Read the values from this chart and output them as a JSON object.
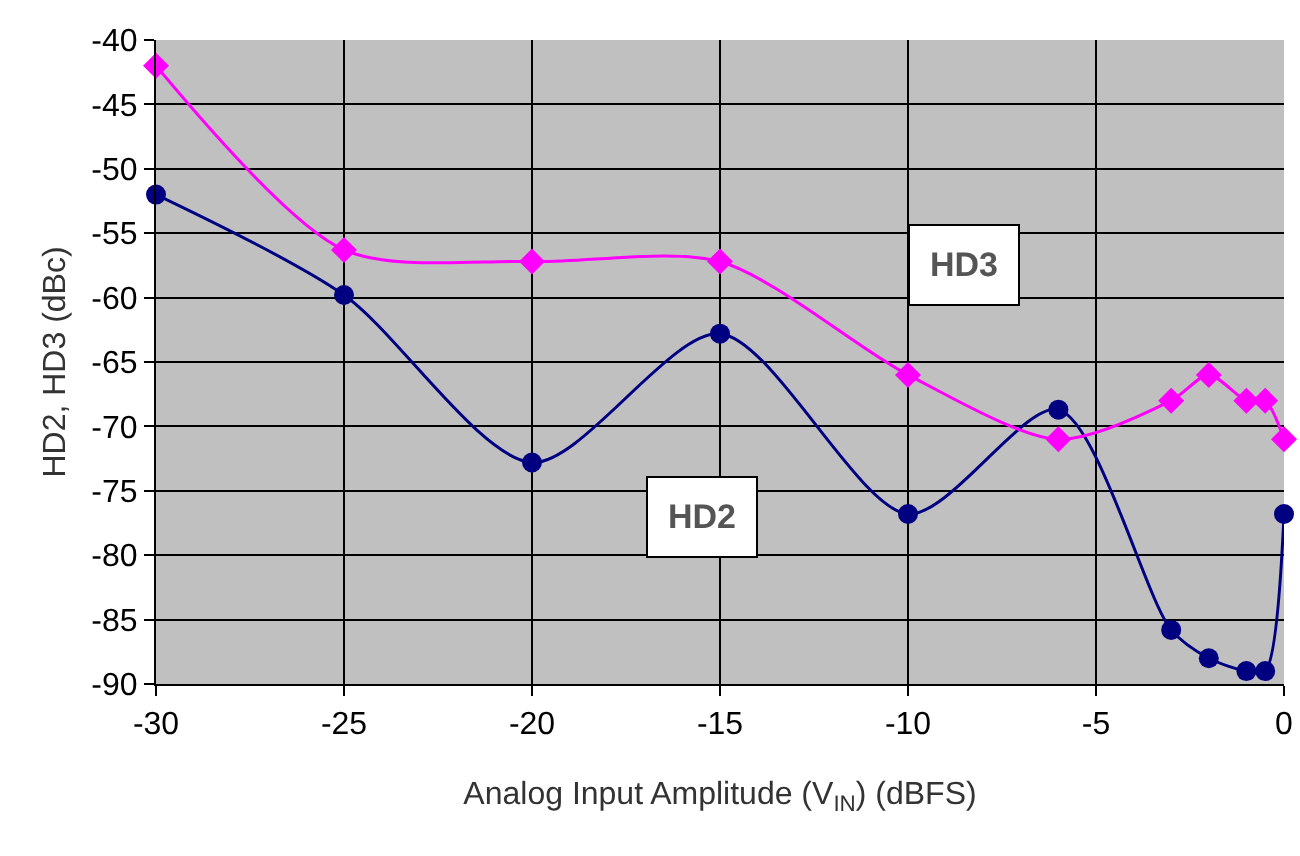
{
  "chart_data": {
    "type": "line",
    "xlabel": "Analog Input Amplitude (V$_{IN}$) (dBFS)",
    "ylabel": "HD2, HD3 (dBc)",
    "x": [
      -30,
      -25,
      -20,
      -15,
      -10,
      -6,
      -3,
      -2,
      -1,
      -0.5,
      0
    ],
    "series": [
      {
        "name": "HD2",
        "color": "#000080",
        "marker": "circle",
        "values": [
          -52,
          -59.8,
          -72.8,
          -62.8,
          -76.8,
          -68.7,
          -85.8,
          -88,
          -89,
          -89,
          -76.8
        ]
      },
      {
        "name": "HD3",
        "color": "#ff00ff",
        "marker": "diamond",
        "values": [
          -42,
          -56.3,
          -57.2,
          -57.2,
          -66,
          -71,
          -68,
          -66,
          -68,
          -68,
          -71
        ]
      }
    ],
    "xlim": [
      -30,
      0
    ],
    "xticks": [
      -30,
      -25,
      -20,
      -15,
      -10,
      -5,
      0
    ],
    "ylim": [
      -90,
      -40
    ],
    "yticks": [
      -90,
      -85,
      -80,
      -75,
      -70,
      -65,
      -60,
      -55,
      -50,
      -45,
      -40
    ],
    "grid": true,
    "legend": false
  }
}
